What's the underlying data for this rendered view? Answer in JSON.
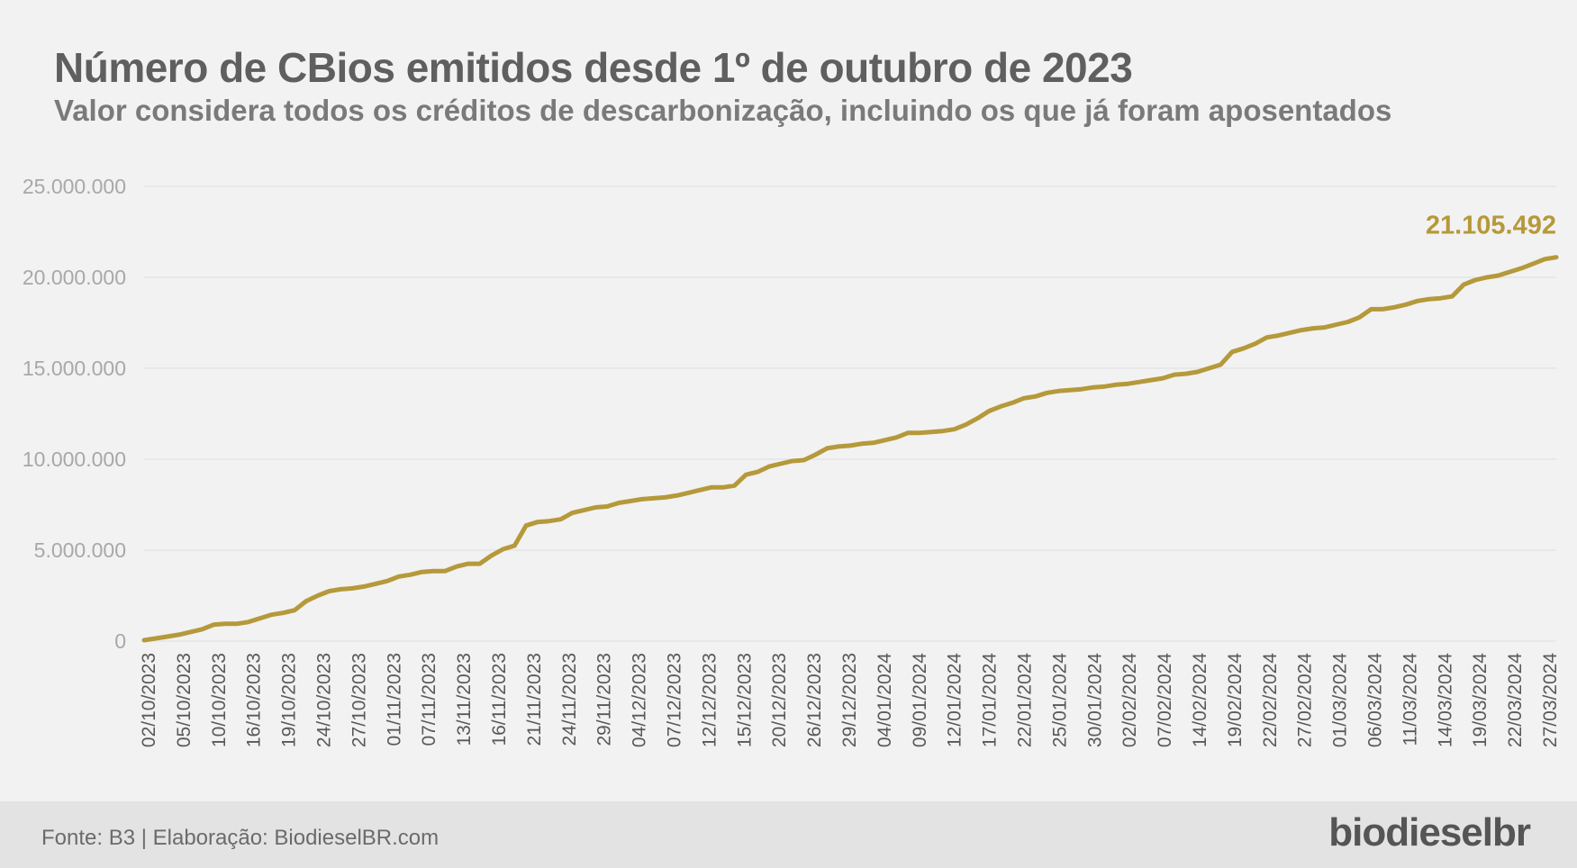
{
  "title": "Número de CBios emitidos desde 1º de outubro de 2023",
  "subtitle": "Valor considera todos os créditos de descarbonização, incluindo os que já foram aposentados",
  "footer": {
    "source": "Fonte: B3 | Elaboração: BiodieselBR.com",
    "logo": "biodieselbr"
  },
  "colors": {
    "line": "#b5993a",
    "axis_text": "#a8a8a8",
    "grid": "#e2e2e2",
    "background": "#f2f2f2"
  },
  "chart_data": {
    "type": "line",
    "title": "Número de CBios emitidos desde 1º de outubro de 2023",
    "xlabel": "",
    "ylabel": "",
    "ylim": [
      0,
      25000000
    ],
    "y_ticks": [
      0,
      5000000,
      10000000,
      15000000,
      20000000,
      25000000
    ],
    "y_tick_labels": [
      "0",
      "5.000.000",
      "10.000.000",
      "15.000.000",
      "20.000.000",
      "25.000.000"
    ],
    "x_tick_labels": [
      "02/10/2023",
      "05/10/2023",
      "10/10/2023",
      "16/10/2023",
      "19/10/2023",
      "24/10/2023",
      "27/10/2023",
      "01/11/2023",
      "07/11/2023",
      "13/11/2023",
      "16/11/2023",
      "21/11/2023",
      "24/11/2023",
      "29/11/2023",
      "04/12/2023",
      "07/12/2023",
      "12/12/2023",
      "15/12/2023",
      "20/12/2023",
      "26/12/2023",
      "29/12/2023",
      "04/01/2024",
      "09/01/2024",
      "12/01/2024",
      "17/01/2024",
      "22/01/2024",
      "25/01/2024",
      "30/01/2024",
      "02/02/2024",
      "07/02/2024",
      "14/02/2024",
      "19/02/2024",
      "22/02/2024",
      "27/02/2024",
      "01/03/2024",
      "06/03/2024",
      "11/03/2024",
      "14/03/2024",
      "19/03/2024",
      "22/03/2024",
      "27/03/2024"
    ],
    "grid": true,
    "series": [
      {
        "values": [
          50000,
          150000,
          250000,
          350000,
          500000,
          650000,
          900000,
          950000,
          950000,
          1050000,
          1250000,
          1450000,
          1550000,
          1700000,
          2200000,
          2500000,
          2750000,
          2850000,
          2900000,
          3000000,
          3150000,
          3300000,
          3550000,
          3650000,
          3800000,
          3850000,
          3850000,
          4100000,
          4250000,
          4250000,
          4700000,
          5050000,
          5250000,
          6350000,
          6550000,
          6600000,
          6700000,
          7050000,
          7200000,
          7350000,
          7400000,
          7600000,
          7700000,
          7800000,
          7850000,
          7900000,
          8000000,
          8150000,
          8300000,
          8450000,
          8450000,
          8550000,
          9150000,
          9300000,
          9600000,
          9750000,
          9900000,
          9950000,
          10250000,
          10600000,
          10700000,
          10750000,
          10850000,
          10900000,
          11050000,
          11200000,
          11450000,
          11450000,
          11500000,
          11550000,
          11650000,
          11900000,
          12250000,
          12650000,
          12900000,
          13100000,
          13350000,
          13450000,
          13650000,
          13750000,
          13800000,
          13850000,
          13950000,
          14000000,
          14100000,
          14150000,
          14250000,
          14350000,
          14450000,
          14650000,
          14700000,
          14800000,
          15000000,
          15200000,
          15900000,
          16100000,
          16350000,
          16700000,
          16800000,
          16950000,
          17100000,
          17200000,
          17250000,
          17400000,
          17550000,
          17800000,
          18250000,
          18250000,
          18350000,
          18500000,
          18700000,
          18800000,
          18850000,
          18950000,
          19600000,
          19850000,
          20000000,
          20100000,
          20300000,
          20500000,
          20750000,
          21000000,
          21105492
        ]
      }
    ],
    "last_value_label": "21.105.492"
  }
}
